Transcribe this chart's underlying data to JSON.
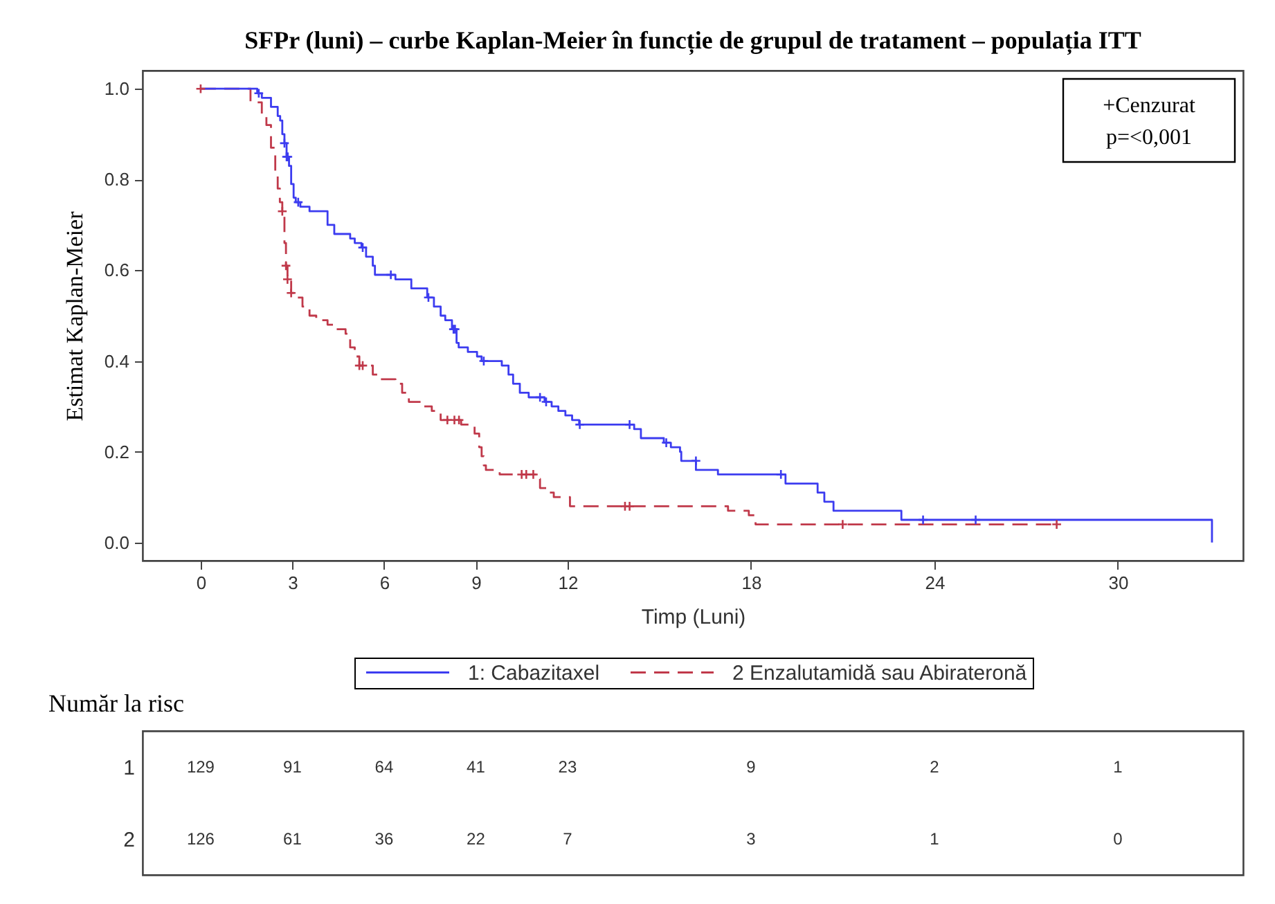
{
  "chart_data": [
    {
      "type": "step",
      "title": "SFPr (luni) – curbe Kaplan-Meier în funcție de grupul de tratament – populația ITT",
      "xlabel": "Timp (Luni)",
      "ylabel": "Estimat Kaplan-Meier",
      "xlim": [
        -1.9,
        34.1
      ],
      "xticks": [
        0,
        3,
        6,
        9,
        12,
        18,
        24,
        30
      ],
      "ylim": [
        -0.04,
        1.04
      ],
      "yticks": [
        {
          "value": 0,
          "label": "0.0"
        },
        0.2,
        0.4,
        0.6,
        0.8,
        {
          "value": 1,
          "label": "1.0"
        }
      ],
      "legend": "bottom",
      "annotations": [
        "+Cenzurat",
        "p=<0,001"
      ],
      "series": [
        {
          "name": "1: Cabazitaxel",
          "color": "#3c3cf0",
          "line_style": "solid",
          "x": [
            0,
            1.85,
            2.0,
            2.3,
            2.52,
            2.6,
            2.67,
            2.74,
            2.81,
            2.89,
            2.96,
            3.04,
            3.11,
            3.26,
            3.56,
            4.15,
            4.37,
            4.89,
            5.04,
            5.26,
            5.41,
            5.63,
            5.7,
            6.37,
            6.89,
            7.41,
            7.63,
            7.85,
            8.0,
            8.22,
            8.37,
            8.44,
            8.74,
            9.04,
            9.19,
            9.85,
            10.07,
            10.22,
            10.44,
            10.73,
            11.25,
            11.48,
            11.7,
            11.93,
            12.15,
            12.38,
            14.18,
            14.4,
            15.15,
            15.38,
            15.68,
            15.72,
            16.2,
            16.92,
            19.13,
            20.18,
            20.4,
            20.7,
            22.92,
            33.08
          ],
          "values": [
            1.0,
            0.99,
            0.98,
            0.96,
            0.94,
            0.93,
            0.9,
            0.88,
            0.85,
            0.83,
            0.79,
            0.76,
            0.75,
            0.74,
            0.73,
            0.7,
            0.68,
            0.67,
            0.66,
            0.65,
            0.63,
            0.61,
            0.59,
            0.58,
            0.56,
            0.54,
            0.52,
            0.5,
            0.49,
            0.47,
            0.44,
            0.43,
            0.42,
            0.41,
            0.4,
            0.39,
            0.37,
            0.35,
            0.33,
            0.32,
            0.31,
            0.3,
            0.29,
            0.28,
            0.27,
            0.26,
            0.25,
            0.23,
            0.22,
            0.21,
            0.2,
            0.18,
            0.16,
            0.15,
            0.13,
            0.11,
            0.09,
            0.07,
            0.05,
            0.0
          ]
        },
        {
          "name": "2 Enzalutamidă sau Abirateronă",
          "color": "#c0394a",
          "line_style": "dashed",
          "x": [
            0,
            1.63,
            2.0,
            2.15,
            2.3,
            2.44,
            2.52,
            2.59,
            2.67,
            2.74,
            2.79,
            2.84,
            2.96,
            3.11,
            3.33,
            3.56,
            3.78,
            4.15,
            4.44,
            4.74,
            4.89,
            5.04,
            5.19,
            5.63,
            5.85,
            6.37,
            6.59,
            6.81,
            7.26,
            7.56,
            7.85,
            8.52,
            8.96,
            9.11,
            9.19,
            9.26,
            9.33,
            9.78,
            10.95,
            11.1,
            11.33,
            11.55,
            12.08,
            17.25,
            17.93,
            18.15,
            28.0
          ],
          "values": [
            1.0,
            0.97,
            0.94,
            0.92,
            0.87,
            0.81,
            0.78,
            0.75,
            0.73,
            0.66,
            0.61,
            0.58,
            0.55,
            0.54,
            0.52,
            0.5,
            0.49,
            0.48,
            0.47,
            0.46,
            0.43,
            0.41,
            0.39,
            0.37,
            0.36,
            0.35,
            0.33,
            0.31,
            0.3,
            0.29,
            0.27,
            0.26,
            0.24,
            0.21,
            0.19,
            0.17,
            0.16,
            0.15,
            0.14,
            0.12,
            0.11,
            0.1,
            0.08,
            0.07,
            0.06,
            0.04,
            0.04
          ]
        },
        {
          "type": "scatter",
          "marker": "cross",
          "color": "#3c3cf0",
          "x": [
            1.9,
            2.74,
            2.81,
            2.85,
            3.19,
            5.3,
            6.22,
            7.45,
            8.27,
            8.32,
            9.26,
            11.1,
            11.3,
            12.4,
            14.03,
            15.23,
            16.2,
            18.98,
            23.63,
            25.35
          ],
          "values": [
            0.99,
            0.88,
            0.85,
            0.85,
            0.75,
            0.65,
            0.59,
            0.54,
            0.47,
            0.47,
            0.4,
            0.32,
            0.31,
            0.26,
            0.26,
            0.22,
            0.18,
            0.15,
            0.05,
            0.05
          ]
        },
        {
          "type": "scatter",
          "marker": "cross",
          "color": "#c0394a",
          "x": [
            0,
            2.67,
            2.79,
            2.84,
            2.96,
            5.19,
            5.3,
            8.07,
            8.3,
            8.45,
            10.5,
            10.65,
            10.88,
            13.88,
            14.03,
            21.0,
            28.0
          ],
          "values": [
            1.0,
            0.73,
            0.61,
            0.58,
            0.55,
            0.39,
            0.39,
            0.27,
            0.27,
            0.27,
            0.15,
            0.15,
            0.15,
            0.08,
            0.08,
            0.04,
            0.04
          ]
        }
      ]
    },
    {
      "type": "other",
      "title": "Număr la risc",
      "y_categories": [
        "1",
        "2"
      ],
      "annotations": [
        "129",
        "91",
        "64",
        "41",
        "23",
        "9",
        "2",
        "1",
        "126",
        "61",
        "36",
        "22",
        "7",
        "3",
        "1",
        "0"
      ]
    }
  ]
}
